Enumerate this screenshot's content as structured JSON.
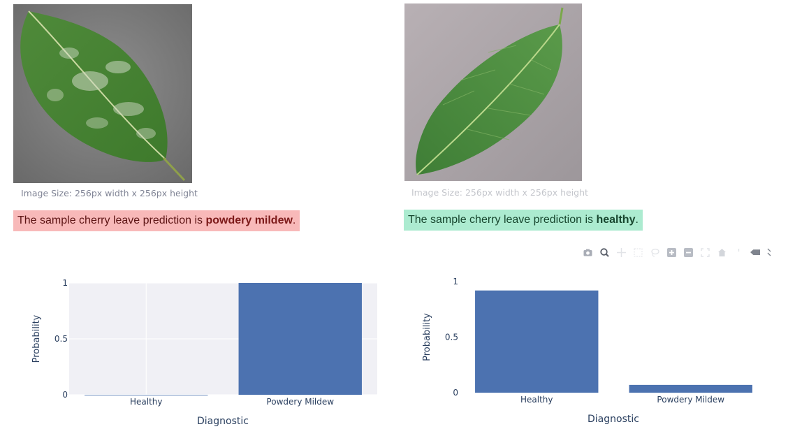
{
  "left_panel": {
    "image_caption": "Image Size: 256px width x 256px height",
    "prediction_prefix": "The sample cherry leave prediction is ",
    "prediction_label": "powdery mildew",
    "prediction_suffix": ".",
    "alert_color": "#f8b9b9"
  },
  "right_panel": {
    "image_caption": "Image Size: 256px width x 256px height",
    "prediction_prefix": "The sample cherry leave prediction is ",
    "prediction_label": "healthy",
    "prediction_suffix": ".",
    "alert_color": "#acebd0"
  },
  "modebar": {
    "icons": [
      "camera-icon",
      "zoom-icon",
      "pan-icon",
      "box-select-icon",
      "lasso-icon",
      "zoom-in-icon",
      "zoom-out-icon",
      "autoscale-icon",
      "reset-axes-icon",
      "spike-lines-icon",
      "hover-closest-icon",
      "hover-compare-icon"
    ]
  },
  "chart_data": [
    {
      "type": "bar",
      "categories": [
        "Healthy",
        "Powdery Mildew"
      ],
      "values": [
        0.0,
        1.0
      ],
      "xlabel": "Diagnostic",
      "ylabel": "Probability",
      "ylim": [
        0,
        1
      ],
      "yticks": [
        "0",
        "0.5",
        "1"
      ],
      "grid": true,
      "bar_color": "#4c72b0",
      "plot_background": "#f0f0f5"
    },
    {
      "type": "bar",
      "categories": [
        "Healthy",
        "Powdery Mildew"
      ],
      "values": [
        0.92,
        0.07
      ],
      "xlabel": "Diagnostic",
      "ylabel": "Probability",
      "ylim": [
        0,
        1
      ],
      "yticks": [
        "0",
        "0.5",
        "1"
      ],
      "grid": false,
      "bar_color": "#4c72b0",
      "plot_background": "#ffffff"
    }
  ]
}
